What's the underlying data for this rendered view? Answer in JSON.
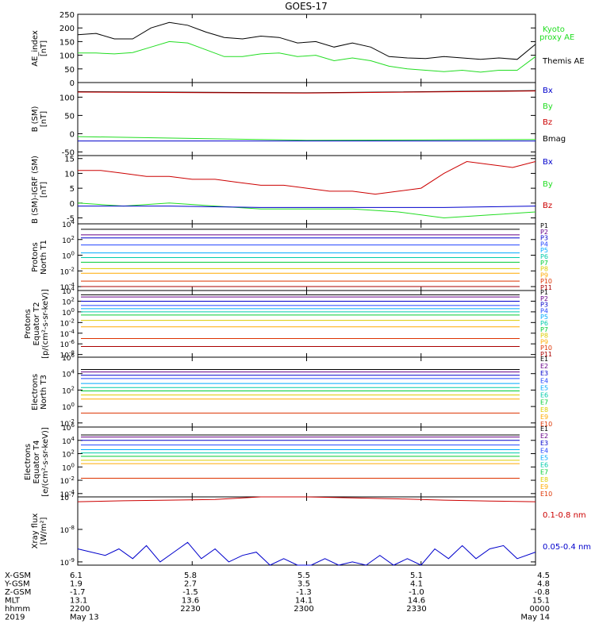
{
  "title": "GOES-17",
  "colors": {
    "black": "#000000",
    "green": "#22dd22",
    "blue": "#0000cc",
    "red": "#cc0000",
    "p": [
      "#000000",
      "#660088",
      "#0000cc",
      "#2244ff",
      "#00aaff",
      "#00ccaa",
      "#00cc33",
      "#ddcc00",
      "#ffaa00",
      "#dd3300",
      "#aa0000"
    ]
  },
  "chart_data": [
    {
      "type": "line",
      "ylabel": [
        "AE_index",
        "[nT]"
      ],
      "yticks": [
        "250",
        "200",
        "150",
        "100",
        "50",
        "0"
      ],
      "ylim": [
        0,
        250
      ],
      "legend": [
        {
          "text": "Kyoto",
          "color": "#22dd22"
        },
        {
          "text": "proxy AE",
          "color": "#22dd22"
        },
        {
          "text": "Themis AE",
          "color": "#000000"
        }
      ],
      "series": [
        {
          "name": "Themis AE",
          "color": "#000000",
          "x": [
            0,
            4,
            8,
            12,
            16,
            20,
            24,
            28,
            32,
            36,
            40,
            44,
            48,
            52,
            56,
            60,
            64,
            68,
            72,
            76,
            80,
            84,
            88,
            92,
            96,
            100
          ],
          "values": [
            175,
            180,
            160,
            160,
            200,
            220,
            210,
            185,
            165,
            160,
            170,
            165,
            145,
            150,
            130,
            145,
            130,
            95,
            90,
            88,
            95,
            90,
            85,
            90,
            85,
            140
          ]
        },
        {
          "name": "Kyoto proxy AE",
          "color": "#22dd22",
          "x": [
            0,
            4,
            8,
            12,
            16,
            20,
            24,
            28,
            32,
            36,
            40,
            44,
            48,
            52,
            56,
            60,
            64,
            68,
            72,
            76,
            80,
            84,
            88,
            92,
            96,
            100
          ],
          "values": [
            108,
            108,
            105,
            110,
            130,
            150,
            145,
            120,
            95,
            95,
            105,
            108,
            95,
            100,
            80,
            90,
            80,
            60,
            50,
            45,
            40,
            45,
            38,
            45,
            45,
            95
          ]
        }
      ]
    },
    {
      "type": "line",
      "ylabel": [
        "B (SM)",
        "[nT]"
      ],
      "yticks": [
        "100",
        "50",
        "0",
        "-50"
      ],
      "ylim": [
        -60,
        140
      ],
      "legend": [
        {
          "text": "Bx",
          "color": "#0000cc"
        },
        {
          "text": "By",
          "color": "#22dd22"
        },
        {
          "text": "Bz",
          "color": "#cc0000"
        },
        {
          "text": "Bmag",
          "color": "#000000"
        }
      ],
      "series": [
        {
          "name": "Bmag",
          "color": "#000000",
          "x": [
            0,
            50,
            100
          ],
          "values": [
            115,
            112,
            118
          ]
        },
        {
          "name": "Bz",
          "color": "#cc0000",
          "x": [
            0,
            50,
            100
          ],
          "values": [
            114,
            111,
            117
          ]
        },
        {
          "name": "By",
          "color": "#22dd22",
          "x": [
            0,
            50,
            100
          ],
          "values": [
            -8,
            -18,
            -16
          ]
        },
        {
          "name": "Bx",
          "color": "#0000cc",
          "x": [
            0,
            50,
            100
          ],
          "values": [
            -20,
            -20,
            -20
          ]
        }
      ]
    },
    {
      "type": "line",
      "ylabel": [
        "B (SM)-IGRF (SM)",
        "[nT]"
      ],
      "yticks": [
        "15",
        "10",
        "5",
        "0",
        "-5"
      ],
      "ylim": [
        -7,
        16
      ],
      "legend": [
        {
          "text": "Bx",
          "color": "#0000cc"
        },
        {
          "text": "By",
          "color": "#22dd22"
        },
        {
          "text": "Bz",
          "color": "#cc0000"
        }
      ],
      "series": [
        {
          "name": "Bz",
          "color": "#cc0000",
          "x": [
            0,
            5,
            10,
            15,
            20,
            25,
            30,
            35,
            40,
            45,
            50,
            55,
            60,
            65,
            70,
            75,
            80,
            85,
            90,
            95,
            100
          ],
          "values": [
            11,
            11,
            10,
            9,
            9,
            8,
            8,
            7,
            6,
            6,
            5,
            4,
            4,
            3,
            4,
            5,
            10,
            14,
            13,
            12,
            14
          ]
        },
        {
          "name": "By",
          "color": "#22dd22",
          "x": [
            0,
            10,
            20,
            30,
            40,
            50,
            60,
            70,
            80,
            90,
            100
          ],
          "values": [
            0,
            -1,
            0,
            -1,
            -2,
            -2,
            -2,
            -3,
            -5,
            -4,
            -3
          ]
        },
        {
          "name": "Bx",
          "color": "#0000cc",
          "x": [
            0,
            20,
            40,
            60,
            80,
            100
          ],
          "values": [
            -1,
            -1,
            -1.5,
            -1.5,
            -1.5,
            -1
          ]
        }
      ]
    },
    {
      "type": "line",
      "ylabel": [
        "Protons",
        "North T1"
      ],
      "yticks": [
        "10^4",
        "10^2",
        "10^0",
        "10^-2",
        "10^-4"
      ],
      "log": true,
      "ylim_log": [
        -4.5,
        4
      ],
      "labels": [
        "P1",
        "P2",
        "P3",
        "P4",
        "P5",
        "P6",
        "P7",
        "P8",
        "P9",
        "P10",
        "P11"
      ],
      "series_logvalues": [
        3.3,
        2.6,
        2.2,
        1.3,
        0.3,
        -0.3,
        -0.9,
        -1.7,
        -2.3,
        -3.3,
        -4.0
      ]
    },
    {
      "type": "line",
      "ylabel": [
        "Protons",
        "Equator T2",
        "[p/(cm²-s-sr-keV)]"
      ],
      "yticks": [
        "10^4",
        "10^2",
        "10^0",
        "10^-2",
        "10^-4",
        "10^-6",
        "10^-8"
      ],
      "log": true,
      "ylim_log": [
        -8.5,
        4
      ],
      "labels": [
        "P1",
        "P2",
        "P3",
        "P4",
        "P5",
        "P6",
        "P7",
        "P8",
        "P9",
        "P10",
        "P11"
      ],
      "series_logvalues": [
        3.2,
        2.8,
        2.0,
        1.2,
        0.6,
        0.0,
        -0.6,
        -1.6,
        -2.8,
        -5.0,
        -6.5
      ]
    },
    {
      "type": "line",
      "ylabel": [
        "Electrons",
        "North T3"
      ],
      "yticks": [
        "10^6",
        "10^4",
        "10^2",
        "10^0",
        "10^-2"
      ],
      "log": true,
      "ylim_log": [
        -2.5,
        6
      ],
      "labels": [
        "E1",
        "E2",
        "E3",
        "E4",
        "E5",
        "E6",
        "E7",
        "E8",
        "E9",
        "E10"
      ],
      "series_logvalues": [
        4.5,
        4.2,
        3.8,
        3.4,
        2.8,
        2.3,
        1.9,
        1.4,
        0.9,
        -0.8
      ]
    },
    {
      "type": "line",
      "ylabel": [
        "Electrons",
        "Equator T4",
        "[e/(cm²-s-sr-keV)]"
      ],
      "yticks": [
        "10^6",
        "10^4",
        "10^2",
        "10^0",
        "10^-2",
        "10^-4"
      ],
      "log": true,
      "ylim_log": [
        -4.5,
        6
      ],
      "labels": [
        "E1",
        "E2",
        "E3",
        "E4",
        "E5",
        "E6",
        "E7",
        "E8",
        "E9",
        "E10"
      ],
      "series_logvalues": [
        4.8,
        4.5,
        4.0,
        3.3,
        2.6,
        2.1,
        1.6,
        1.0,
        0.5,
        -1.7
      ]
    },
    {
      "type": "line",
      "ylabel": [
        "Xray flux",
        "[W/m²]"
      ],
      "yticks": [
        "10^-7",
        "10^-8",
        "10^-9"
      ],
      "log": true,
      "ylim_log": [
        -9.1,
        -7
      ],
      "legend": [
        {
          "text": "0.1-0.8 nm",
          "color": "#cc0000"
        },
        {
          "text": "0.05-0.4 nm",
          "color": "#0000cc"
        }
      ],
      "series": [
        {
          "name": "0.1-0.8 nm",
          "color": "#cc0000",
          "x": [
            0,
            10,
            20,
            30,
            40,
            50,
            60,
            70,
            80,
            90,
            100
          ],
          "logvalues": [
            -7.15,
            -7.12,
            -7.1,
            -7.08,
            -7.0,
            -7.0,
            -7.03,
            -7.06,
            -7.1,
            -7.13,
            -7.15
          ]
        },
        {
          "name": "0.05-0.4 nm",
          "color": "#0000cc",
          "x": [
            0,
            3,
            6,
            9,
            12,
            15,
            18,
            21,
            24,
            27,
            30,
            33,
            36,
            39,
            42,
            45,
            48,
            51,
            54,
            57,
            60,
            63,
            66,
            69,
            72,
            75,
            78,
            81,
            84,
            87,
            90,
            93,
            96,
            100
          ],
          "logvalues": [
            -8.6,
            -8.7,
            -8.8,
            -8.6,
            -8.9,
            -8.5,
            -9.0,
            -8.7,
            -8.4,
            -8.9,
            -8.6,
            -9.0,
            -8.8,
            -8.7,
            -9.1,
            -8.9,
            -9.1,
            -9.1,
            -8.9,
            -9.1,
            -9.0,
            -9.1,
            -8.8,
            -9.1,
            -8.9,
            -9.1,
            -8.6,
            -8.9,
            -8.5,
            -8.9,
            -8.6,
            -8.5,
            -8.9,
            -8.7
          ]
        }
      ]
    }
  ],
  "footer": {
    "rows": [
      {
        "label": "X-GSM",
        "values": [
          "6.1",
          "5.8",
          "5.5",
          "5.1",
          "4.5"
        ]
      },
      {
        "label": "Y-GSM",
        "values": [
          "1.9",
          "2.7",
          "3.5",
          "4.1",
          "4.8"
        ]
      },
      {
        "label": "Z-GSM",
        "values": [
          "-1.7",
          "-1.5",
          "-1.3",
          "-1.0",
          "-0.8"
        ]
      },
      {
        "label": "MLT",
        "values": [
          "13.1",
          "13.6",
          "14.1",
          "14.6",
          "15.1"
        ]
      },
      {
        "label": "hhmm",
        "values": [
          "2200",
          "2230",
          "2300",
          "2330",
          "0000"
        ]
      },
      {
        "label": "2019",
        "values": [
          "May 13",
          "",
          "",
          "",
          "May 14"
        ]
      }
    ]
  }
}
